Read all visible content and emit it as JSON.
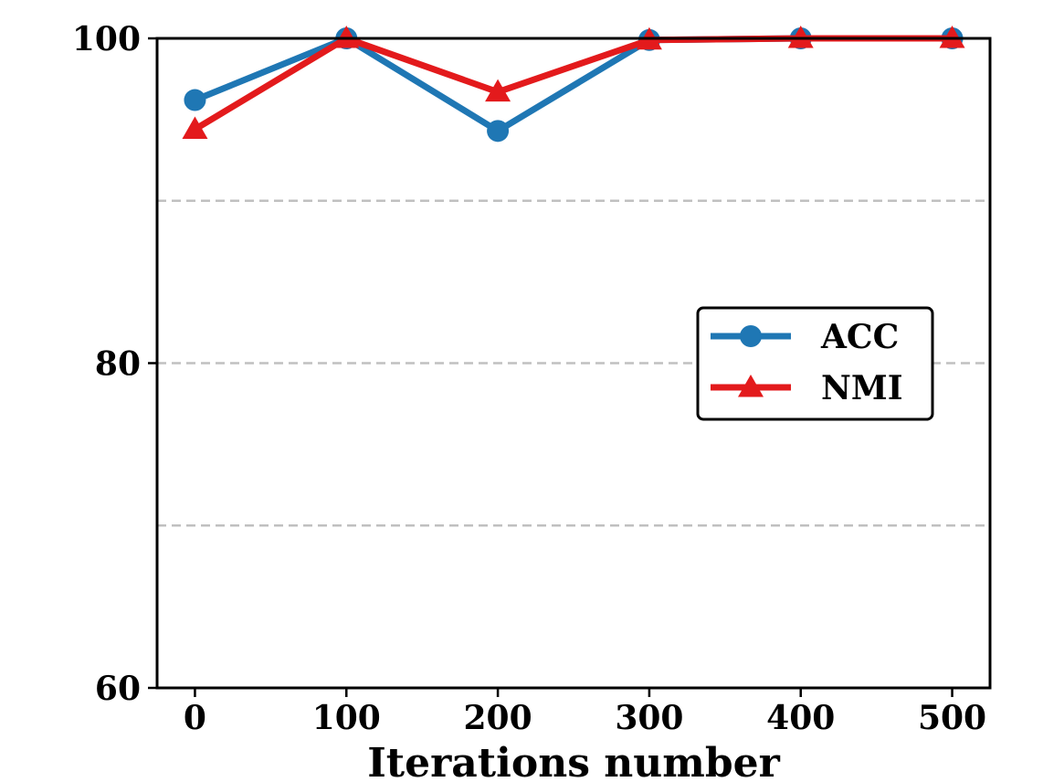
{
  "chart_data": {
    "type": "line",
    "title": "",
    "xlabel": "Iterations number",
    "ylabel": "",
    "x": [
      0,
      100,
      200,
      300,
      400,
      500
    ],
    "xticks": [
      "0",
      "100",
      "200",
      "300",
      "400",
      "500"
    ],
    "yticks": [
      "60",
      "80",
      "100"
    ],
    "ylim": [
      60,
      100
    ],
    "xlim": [
      -25,
      525
    ],
    "grid_y": [
      70,
      80,
      90
    ],
    "legend_position": "center-right",
    "series": [
      {
        "name": "ACC",
        "color": "#1f77b4",
        "marker": "circle",
        "values": [
          96.2,
          100.0,
          94.3,
          99.9,
          100.0,
          100.0
        ]
      },
      {
        "name": "NMI",
        "color": "#e31a1c",
        "marker": "triangle",
        "values": [
          94.4,
          100.0,
          96.7,
          99.9,
          100.0,
          100.0
        ]
      }
    ]
  }
}
